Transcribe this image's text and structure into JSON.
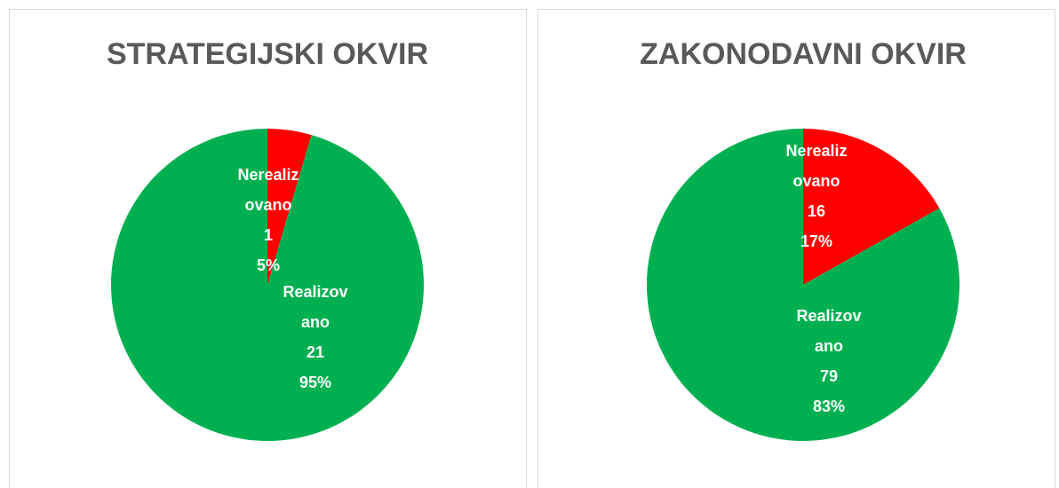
{
  "chart_data": [
    {
      "type": "pie",
      "title": "STRATEGIJSKI OKVIR",
      "categories": [
        "Nerealizovano",
        "Realizovano"
      ],
      "values": [
        1,
        21
      ],
      "percent_labels": [
        "5%",
        "95%"
      ],
      "colors": [
        "#ff0000",
        "#00b050"
      ]
    },
    {
      "type": "pie",
      "title": "ZAKONODAVNI OKVIR",
      "categories": [
        "Nerealizovano",
        "Realizovano"
      ],
      "values": [
        16,
        79
      ],
      "percent_labels": [
        "17%",
        "83%"
      ],
      "colors": [
        "#ff0000",
        "#00b050"
      ]
    }
  ]
}
